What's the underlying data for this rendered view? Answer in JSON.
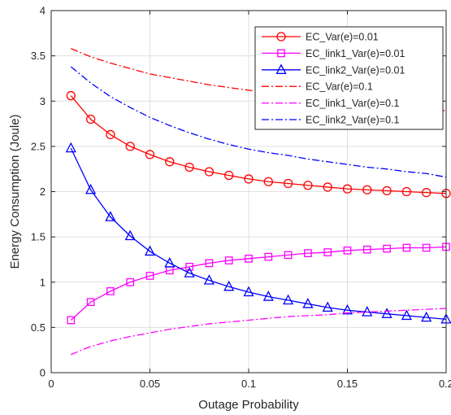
{
  "chart_data": {
    "type": "line",
    "title": "",
    "xlabel": "Outage Probability",
    "ylabel": "Energy Consumption (Joule)",
    "xlim": [
      0,
      0.2
    ],
    "ylim": [
      0,
      4
    ],
    "xticks": [
      0,
      0.05,
      0.1,
      0.15,
      0.2
    ],
    "xtick_labels": [
      "0",
      "0.05",
      "0.1",
      "0.15",
      "0.2"
    ],
    "yticks": [
      0,
      0.5,
      1,
      1.5,
      2,
      2.5,
      3,
      3.5,
      4
    ],
    "ytick_labels": [
      "0",
      "0.5",
      "1",
      "1.5",
      "2",
      "2.5",
      "3",
      "3.5",
      "4"
    ],
    "grid": true,
    "legend_position": "top-right",
    "x": [
      0.01,
      0.02,
      0.03,
      0.04,
      0.05,
      0.06,
      0.07,
      0.08,
      0.09,
      0.1,
      0.11,
      0.12,
      0.13,
      0.14,
      0.15,
      0.16,
      0.17,
      0.18,
      0.19,
      0.2
    ],
    "series": [
      {
        "name": "EC_Var(e)=0.01",
        "color": "#ff0000",
        "line_style": "solid",
        "marker": "circle",
        "values": [
          3.06,
          2.8,
          2.63,
          2.5,
          2.41,
          2.33,
          2.27,
          2.22,
          2.18,
          2.14,
          2.11,
          2.09,
          2.07,
          2.05,
          2.03,
          2.02,
          2.01,
          2.0,
          1.99,
          1.98
        ]
      },
      {
        "name": "EC_link1_Var(e)=0.01",
        "color": "#ff00ff",
        "line_style": "solid",
        "marker": "square",
        "values": [
          0.58,
          0.78,
          0.9,
          1.0,
          1.07,
          1.13,
          1.17,
          1.21,
          1.24,
          1.26,
          1.28,
          1.3,
          1.32,
          1.33,
          1.35,
          1.36,
          1.37,
          1.38,
          1.38,
          1.39
        ]
      },
      {
        "name": "EC_link2_Var(e)=0.01",
        "color": "#0000ff",
        "line_style": "solid",
        "marker": "triangle",
        "values": [
          2.48,
          2.02,
          1.72,
          1.51,
          1.34,
          1.21,
          1.1,
          1.02,
          0.95,
          0.89,
          0.84,
          0.8,
          0.76,
          0.72,
          0.69,
          0.67,
          0.65,
          0.63,
          0.61,
          0.59
        ]
      },
      {
        "name": "EC_Var(e)=0.1",
        "color": "#ff0000",
        "line_style": "dashdot",
        "marker": "none",
        "values": [
          3.58,
          3.49,
          3.42,
          3.36,
          3.3,
          3.26,
          3.22,
          3.18,
          3.15,
          3.12,
          3.09,
          3.07,
          3.05,
          3.03,
          3.01,
          2.99,
          2.97,
          2.95,
          2.93,
          2.89
        ]
      },
      {
        "name": "EC_link1_Var(e)=0.1",
        "color": "#ff00ff",
        "line_style": "dashdot",
        "marker": "none",
        "values": [
          0.2,
          0.29,
          0.35,
          0.4,
          0.44,
          0.48,
          0.51,
          0.54,
          0.56,
          0.58,
          0.6,
          0.62,
          0.63,
          0.64,
          0.66,
          0.67,
          0.68,
          0.69,
          0.7,
          0.71
        ]
      },
      {
        "name": "EC_link2_Var(e)=0.1",
        "color": "#0000ff",
        "line_style": "dashdot",
        "marker": "none",
        "values": [
          3.38,
          3.2,
          3.05,
          2.93,
          2.82,
          2.73,
          2.65,
          2.58,
          2.52,
          2.47,
          2.43,
          2.4,
          2.36,
          2.33,
          2.3,
          2.27,
          2.25,
          2.22,
          2.2,
          2.16
        ]
      }
    ]
  }
}
